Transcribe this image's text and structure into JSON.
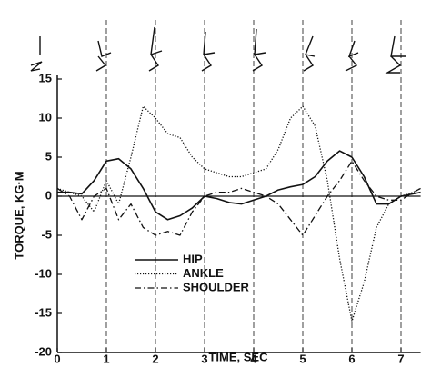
{
  "chart_data": {
    "type": "line",
    "xlabel": "TIME, SEC",
    "ylabel": "TORQUE, KG·M",
    "x": [
      0,
      0.25,
      0.5,
      0.75,
      1,
      1.25,
      1.5,
      1.75,
      2,
      2.25,
      2.5,
      2.75,
      3,
      3.25,
      3.5,
      3.75,
      4,
      4.25,
      4.5,
      4.75,
      5,
      5.25,
      5.5,
      5.75,
      6,
      6.25,
      6.5,
      6.75,
      7,
      7.25,
      7.4
    ],
    "series": [
      {
        "name": "HIP",
        "color": "#111111",
        "style": "solid",
        "values": [
          0.5,
          0.5,
          0.3,
          2,
          4.5,
          4.8,
          3.5,
          1,
          -2,
          -3,
          -2.5,
          -1.5,
          0,
          -0.3,
          -0.8,
          -1,
          -0.5,
          0,
          0.8,
          1.2,
          1.5,
          2.5,
          4.5,
          5.8,
          5,
          2.5,
          -1,
          -1,
          0,
          0.3,
          0.5
        ]
      },
      {
        "name": "ANKLE",
        "color": "#111111",
        "style": "dotted",
        "values": [
          1,
          0.5,
          0,
          -2,
          2,
          -1,
          5,
          11.5,
          10,
          8,
          7.5,
          5,
          3.5,
          3,
          2.5,
          2.5,
          3,
          3.5,
          6,
          10,
          11.5,
          9,
          2,
          -8,
          -16,
          -11,
          -4,
          -1,
          0,
          0.5,
          1
        ]
      },
      {
        "name": "SHOULDER",
        "color": "#111111",
        "style": "dashdot",
        "values": [
          1,
          0,
          -3,
          0,
          1,
          -3,
          -1,
          -4,
          -5,
          -4.5,
          -5,
          -2,
          0,
          0.5,
          0.5,
          1,
          0.5,
          0,
          -1,
          -3,
          -5,
          -2.5,
          0,
          2,
          4.5,
          2,
          0,
          -0.5,
          -0.5,
          0.5,
          1
        ]
      }
    ],
    "xlim": [
      0,
      7.4
    ],
    "ylim": [
      -20,
      15
    ],
    "xticks": [
      0,
      1,
      2,
      3,
      4,
      5,
      6,
      7
    ],
    "yticks": [
      15,
      10,
      5,
      0,
      -5,
      -10,
      -15,
      -20
    ]
  }
}
